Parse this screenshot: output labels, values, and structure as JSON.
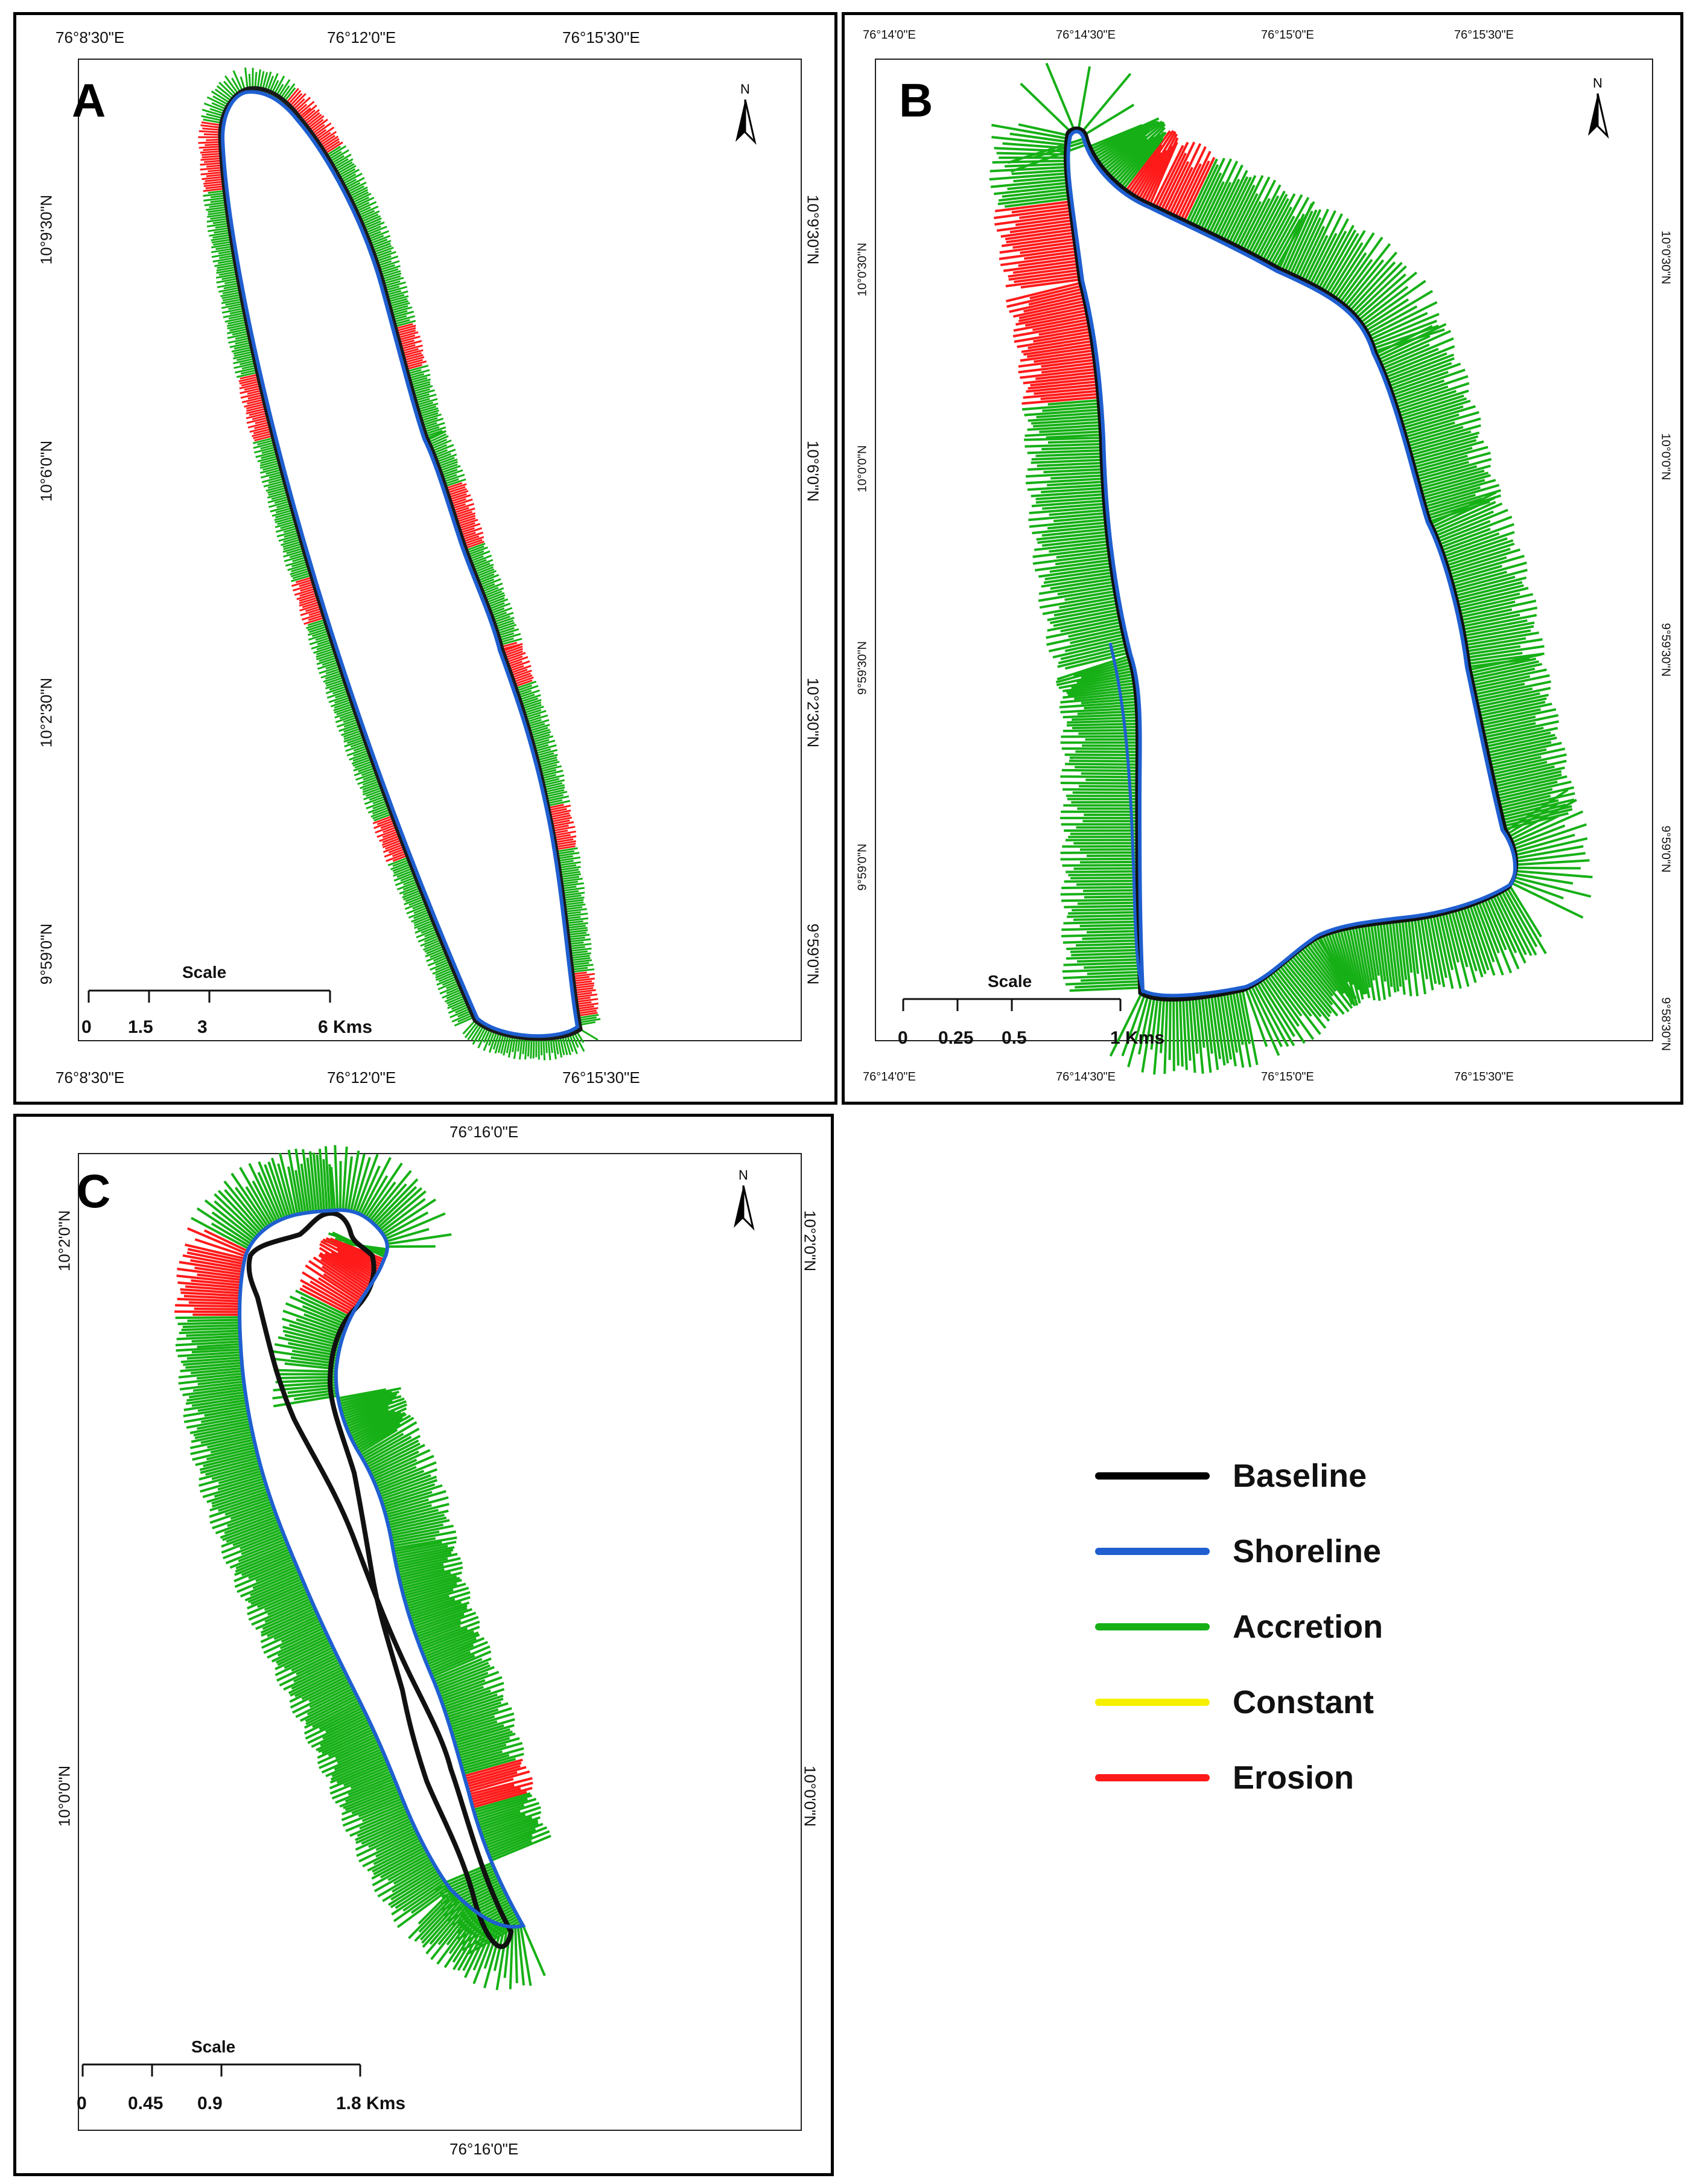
{
  "colors": {
    "baseline": "#000000",
    "shoreline": "#1f5fd0",
    "accretion": "#16b016",
    "constant": "#f5f000",
    "erosion": "#ff1a1a"
  },
  "panels": {
    "a": {
      "letter": "A",
      "top_labels": [
        "76°8'30\"E",
        "76°12'0\"E",
        "76°15'30\"E"
      ],
      "bottom_labels": [
        "76°8'30\"E",
        "76°12'0\"E",
        "76°15'30\"E"
      ],
      "left_labels": [
        "10°9'30\"N",
        "10°6'0\"N",
        "10°2'30\"N",
        "9°59'0\"N"
      ],
      "right_labels": [
        "10°9'30\"N",
        "10°6'0\"N",
        "10°2'30\"N",
        "9°59'0\"N"
      ],
      "scale_title": "Scale",
      "scale_ticks": [
        "0",
        "1.5",
        "3",
        "6 Kms"
      ],
      "north": "N"
    },
    "b": {
      "letter": "B",
      "top_labels": [
        "76°14'0\"E",
        "76°14'30\"E",
        "76°15'0\"E",
        "76°15'30\"E"
      ],
      "bottom_labels": [
        "76°14'0\"E",
        "76°14'30\"E",
        "76°15'0\"E",
        "76°15'30\"E"
      ],
      "left_labels": [
        "10°0'30\"N",
        "10°0'0\"N",
        "9°59'30\"N",
        "9°59'0\"N"
      ],
      "right_labels": [
        "10°0'30\"N",
        "10°0'0\"N",
        "9°59'30\"N",
        "9°59'0\"N",
        "9°58'30\"N"
      ],
      "scale_title": "Scale",
      "scale_ticks": [
        "0",
        "0.25",
        "0.5",
        "1 Kms"
      ],
      "north": "N"
    },
    "c": {
      "letter": "C",
      "top_labels": [
        "76°16'0\"E"
      ],
      "bottom_labels": [
        "76°16'0\"E"
      ],
      "left_labels": [
        "10°2'0\"N",
        "10°0'0\"N"
      ],
      "right_labels": [
        "10°2'0\"N",
        "10°0'0\"N"
      ],
      "scale_title": "Scale",
      "scale_ticks": [
        "0",
        "0.45",
        "0.9",
        "1.8 Kms"
      ],
      "north": "N"
    }
  },
  "legend": {
    "items": [
      {
        "label": "Baseline",
        "color": "#000000"
      },
      {
        "label": "Shoreline",
        "color": "#1f5fd0"
      },
      {
        "label": "Accretion",
        "color": "#16b016"
      },
      {
        "label": "Constant",
        "color": "#f5f000"
      },
      {
        "label": "Erosion",
        "color": "#ff1a1a"
      }
    ]
  }
}
